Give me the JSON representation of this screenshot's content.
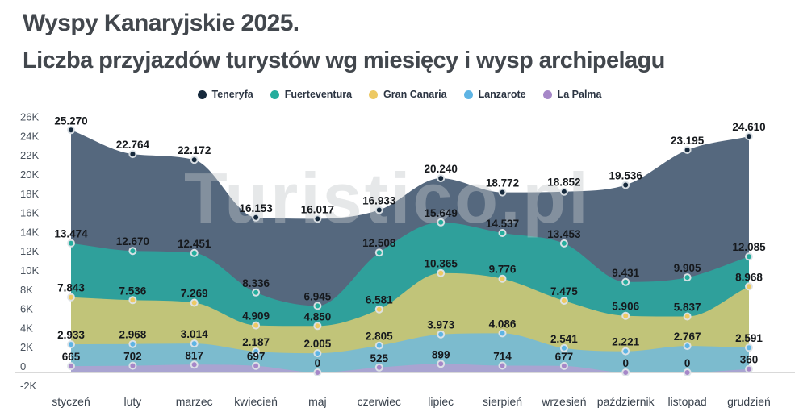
{
  "header": {
    "title_line1": "Wyspy Kanaryjskie 2025.",
    "title_line2": "Liczba przyjazdów turystów wg miesięcy i wysp archipelagu"
  },
  "watermark": "Turistico.pl",
  "chart_data": {
    "type": "area",
    "stacked": false,
    "smooth": true,
    "grid": false,
    "legend_position": "top",
    "title": "Wyspy Kanaryjskie 2025.",
    "subtitle": "Liczba przyjazdów turystów wg miesięcy i wysp archipelagu",
    "xlabel": "",
    "ylabel": "",
    "ylim": [
      -2000,
      26000
    ],
    "y_tick_step": 2000,
    "categories": [
      "styczeń",
      "luty",
      "marzec",
      "kwiecień",
      "maj",
      "czerwiec",
      "lipiec",
      "sierpień",
      "wrzesień",
      "październik",
      "listopad",
      "grudzień"
    ],
    "series": [
      {
        "name": "Teneryfa",
        "legend_color": "#16293c",
        "area_color": "#55687e",
        "values": [
          25270,
          22764,
          22172,
          16153,
          16017,
          16933,
          20240,
          18772,
          18852,
          19536,
          23195,
          24610
        ]
      },
      {
        "name": "Fuerteventura",
        "legend_color": "#25ad9d",
        "area_color": "#2fa09b",
        "values": [
          13474,
          12670,
          12451,
          8336,
          6945,
          12508,
          15649,
          14537,
          13453,
          9431,
          9905,
          12085
        ]
      },
      {
        "name": "Gran Canaria",
        "legend_color": "#edc963",
        "area_color": "#c1c479",
        "values": [
          7843,
          7536,
          7269,
          4909,
          4850,
          6581,
          10365,
          9776,
          7475,
          5906,
          5837,
          8968
        ]
      },
      {
        "name": "Lanzarote",
        "legend_color": "#5eb4e4",
        "area_color": "#7cbbce",
        "values": [
          2933,
          2968,
          3014,
          2187,
          2005,
          2805,
          3973,
          4086,
          2541,
          2221,
          2767,
          2591
        ]
      },
      {
        "name": "La Palma",
        "legend_color": "#a687c8",
        "area_color": "#a9a4d1",
        "values": [
          665,
          702,
          817,
          697,
          0,
          525,
          899,
          714,
          677,
          0,
          0,
          360
        ]
      }
    ],
    "colors": {
      "axis_line": "#d9d9d9",
      "tick_label": "#49525d",
      "month_label": "#39424d",
      "data_label": "#16191d",
      "title": "#42474d",
      "watermark": "rgba(196,199,202,0.42)"
    }
  }
}
